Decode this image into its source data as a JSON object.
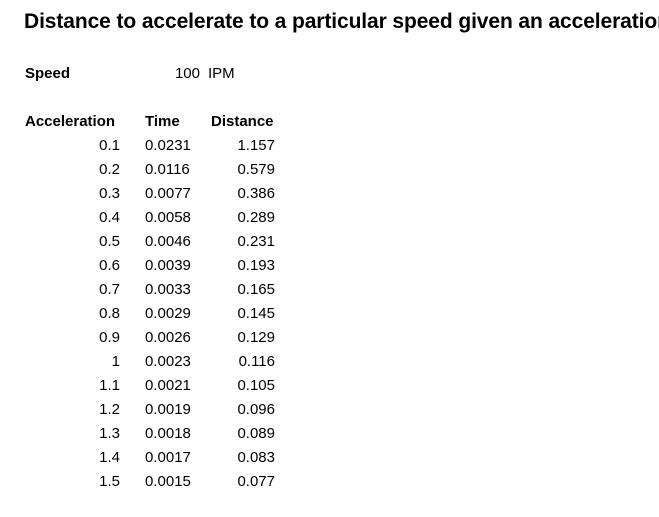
{
  "title": "Distance to accelerate to a particular speed given an acceleration",
  "speed": {
    "label": "Speed",
    "value": "100",
    "unit": "IPM"
  },
  "table": {
    "headers": [
      "Acceleration",
      "Time",
      "Distance"
    ],
    "rows": [
      [
        "0.1",
        "0.0231",
        "1.157"
      ],
      [
        "0.2",
        "0.0116",
        "0.579"
      ],
      [
        "0.3",
        "0.0077",
        "0.386"
      ],
      [
        "0.4",
        "0.0058",
        "0.289"
      ],
      [
        "0.5",
        "0.0046",
        "0.231"
      ],
      [
        "0.6",
        "0.0039",
        "0.193"
      ],
      [
        "0.7",
        "0.0033",
        "0.165"
      ],
      [
        "0.8",
        "0.0029",
        "0.145"
      ],
      [
        "0.9",
        "0.0026",
        "0.129"
      ],
      [
        "1",
        "0.0023",
        "0.116"
      ],
      [
        "1.1",
        "0.0021",
        "0.105"
      ],
      [
        "1.2",
        "0.0019",
        "0.096"
      ],
      [
        "1.3",
        "0.0018",
        "0.089"
      ],
      [
        "1.4",
        "0.0017",
        "0.083"
      ],
      [
        "1.5",
        "0.0015",
        "0.077"
      ]
    ]
  }
}
